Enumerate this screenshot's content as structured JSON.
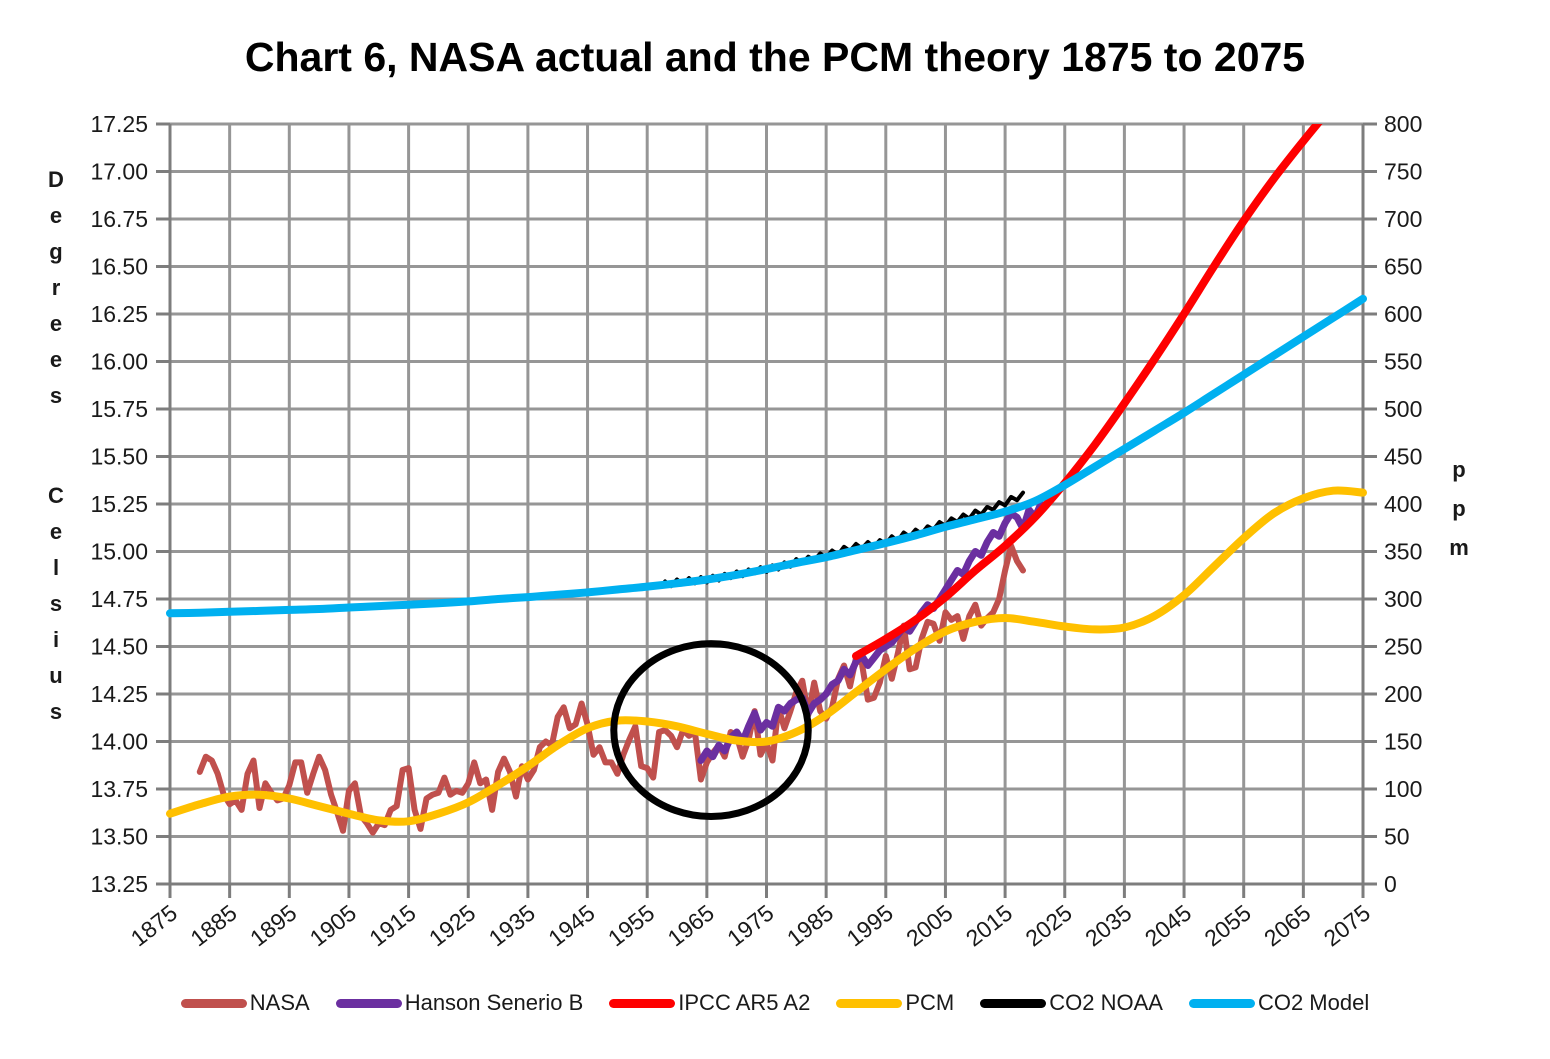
{
  "title": "Chart 6, NASA actual and the PCM theory 1875 to 2075",
  "colors": {
    "grid": "#969696",
    "axis": "#7d7d7d",
    "text": "#1a1a1a",
    "background": "#ffffff"
  },
  "chart_data": {
    "type": "line",
    "title": "Chart 6, NASA actual and the PCM theory 1875 to 2075",
    "grid": true,
    "legend_position": "bottom",
    "x_axis": {
      "min": 1875,
      "max": 2075,
      "ticks": [
        "1875",
        "1885",
        "1895",
        "1905",
        "1915",
        "1925",
        "1935",
        "1945",
        "1955",
        "1965",
        "1975",
        "1985",
        "1995",
        "2005",
        "2015",
        "2025",
        "2035",
        "2045",
        "2055",
        "2065",
        "2075"
      ]
    },
    "left_axis": {
      "label": "Degrees Celsius",
      "word1": "Degrees",
      "word2": "Celsius",
      "min": 13.25,
      "max": 17.25,
      "ticks": [
        "17.25",
        "17.00",
        "16.75",
        "16.50",
        "16.25",
        "16.00",
        "15.75",
        "15.50",
        "15.25",
        "15.00",
        "14.75",
        "14.50",
        "14.25",
        "14.00",
        "13.75",
        "13.50",
        "13.25"
      ]
    },
    "right_axis": {
      "label": "ppm",
      "word": "ppm",
      "min": 0,
      "max": 800,
      "ticks": [
        "800",
        "750",
        "700",
        "650",
        "600",
        "550",
        "500",
        "450",
        "400",
        "350",
        "300",
        "250",
        "200",
        "150",
        "100",
        "50",
        "0"
      ]
    },
    "series": [
      {
        "name": "NASA",
        "color": "#C0504D",
        "width": 6,
        "axis": "left",
        "smooth": false,
        "x_start": 1880,
        "x_step": 1,
        "values": [
          13.84,
          13.92,
          13.9,
          13.83,
          13.72,
          13.67,
          13.69,
          13.64,
          13.83,
          13.9,
          13.65,
          13.78,
          13.73,
          13.69,
          13.7,
          13.77,
          13.89,
          13.89,
          13.73,
          13.83,
          13.92,
          13.85,
          13.72,
          13.63,
          13.53,
          13.74,
          13.78,
          13.61,
          13.57,
          13.52,
          13.57,
          13.56,
          13.64,
          13.66,
          13.85,
          13.86,
          13.64,
          13.54,
          13.7,
          13.72,
          13.73,
          13.81,
          13.72,
          13.74,
          13.73,
          13.78,
          13.89,
          13.78,
          13.8,
          13.64,
          13.84,
          13.91,
          13.84,
          13.71,
          13.87,
          13.8,
          13.85,
          13.97,
          14.0,
          13.98,
          14.13,
          14.18,
          14.07,
          14.09,
          14.2,
          14.09,
          13.93,
          13.97,
          13.89,
          13.89,
          13.83,
          13.93,
          14.01,
          14.08,
          13.87,
          13.86,
          13.81,
          14.05,
          14.06,
          14.03,
          13.97,
          14.06,
          14.03,
          14.05,
          13.8,
          13.89,
          13.94,
          13.98,
          13.92,
          14.05,
          14.03,
          13.92,
          14.01,
          14.16,
          13.93,
          13.99,
          13.9,
          14.18,
          14.07,
          14.16,
          14.26,
          14.32,
          14.14,
          14.31,
          14.16,
          14.12,
          14.18,
          14.33,
          14.4,
          14.29,
          14.44,
          14.41,
          14.22,
          14.23,
          14.31,
          14.45,
          14.33,
          14.46,
          14.61,
          14.38,
          14.39,
          14.54,
          14.63,
          14.62,
          14.53,
          14.68,
          14.64,
          14.66,
          14.54,
          14.66,
          14.72,
          14.61,
          14.65,
          14.68,
          14.75,
          14.9,
          15.03,
          14.95,
          14.9
        ]
      },
      {
        "name": "Hanson Senerio B",
        "color": "#6B2FA0",
        "width": 7,
        "axis": "left",
        "smooth": false,
        "x_start": 1964,
        "x_step": 1,
        "values": [
          13.9,
          13.95,
          13.92,
          13.98,
          13.95,
          14.02,
          14.05,
          14.0,
          14.08,
          14.15,
          14.06,
          14.1,
          14.08,
          14.18,
          14.16,
          14.2,
          14.22,
          14.23,
          14.15,
          14.2,
          14.22,
          14.25,
          14.3,
          14.32,
          14.38,
          14.35,
          14.42,
          14.45,
          14.4,
          14.44,
          14.48,
          14.5,
          14.52,
          14.56,
          14.6,
          14.58,
          14.63,
          14.68,
          14.72,
          14.7,
          14.75,
          14.8,
          14.85,
          14.9,
          14.88,
          14.95,
          15.0,
          14.98,
          15.05,
          15.1,
          15.08,
          15.15,
          15.2,
          15.18,
          15.12,
          15.22,
          15.18,
          15.25
        ]
      },
      {
        "name": "IPCC AR5 A2",
        "color": "#FE0000",
        "width": 8,
        "axis": "left",
        "smooth": true,
        "x": [
          1990,
          1995,
          2000,
          2005,
          2010,
          2015,
          2020,
          2025,
          2030,
          2035,
          2040,
          2045,
          2050,
          2055,
          2060,
          2065,
          2070,
          2075
        ],
        "values": [
          14.45,
          14.54,
          14.64,
          14.76,
          14.9,
          15.03,
          15.18,
          15.36,
          15.56,
          15.78,
          16.01,
          16.25,
          16.5,
          16.74,
          16.96,
          17.16,
          17.35,
          17.53
        ]
      },
      {
        "name": "PCM",
        "color": "#FFC000",
        "width": 8,
        "axis": "left",
        "smooth": true,
        "x": [
          1875,
          1880,
          1885,
          1890,
          1895,
          1900,
          1905,
          1910,
          1915,
          1920,
          1925,
          1930,
          1935,
          1940,
          1945,
          1950,
          1955,
          1960,
          1965,
          1970,
          1975,
          1980,
          1985,
          1990,
          1995,
          2000,
          2005,
          2010,
          2015,
          2020,
          2025,
          2030,
          2035,
          2040,
          2045,
          2050,
          2055,
          2060,
          2065,
          2070,
          2075
        ],
        "values": [
          13.62,
          13.67,
          13.71,
          13.72,
          13.7,
          13.66,
          13.62,
          13.585,
          13.58,
          13.62,
          13.68,
          13.77,
          13.87,
          13.98,
          14.07,
          14.11,
          14.105,
          14.08,
          14.04,
          14.005,
          14.0,
          14.05,
          14.14,
          14.26,
          14.38,
          14.49,
          14.58,
          14.63,
          14.65,
          14.63,
          14.605,
          14.59,
          14.6,
          14.66,
          14.77,
          14.92,
          15.07,
          15.2,
          15.28,
          15.32,
          15.31
        ]
      },
      {
        "name": "CO2 NOAA",
        "color": "#000000",
        "width": 4,
        "axis": "right",
        "smooth": false,
        "x_start": 1958,
        "x_step": 1,
        "values": [
          318.5,
          313.5,
          320.5,
          315.5,
          322,
          316.5,
          323,
          317.5,
          324.5,
          319.5,
          326.5,
          322,
          329,
          324,
          331,
          327,
          333.5,
          328.5,
          335.5,
          331,
          338.5,
          334,
          342,
          337.5,
          344.5,
          340.5,
          348,
          343.5,
          351,
          346.5,
          355,
          350.5,
          358,
          353,
          360,
          354.5,
          362,
          358,
          366,
          361,
          370,
          365.5,
          373,
          368.5,
          376.5,
          373,
          381,
          377,
          385,
          381,
          389,
          384.5,
          393,
          389,
          397,
          394,
          402,
          398.5,
          407.5,
          404,
          412
        ]
      },
      {
        "name": "CO2 Model",
        "color": "#00B0F0",
        "width": 8,
        "axis": "right",
        "smooth": true,
        "x": [
          1875,
          1880,
          1885,
          1890,
          1895,
          1900,
          1905,
          1910,
          1915,
          1920,
          1925,
          1930,
          1935,
          1940,
          1945,
          1950,
          1955,
          1960,
          1965,
          1970,
          1975,
          1980,
          1985,
          1990,
          1995,
          2000,
          2005,
          2010,
          2015,
          2020,
          2025,
          2030,
          2035,
          2040,
          2045,
          2050,
          2055,
          2060,
          2065,
          2070,
          2075
        ],
        "values": [
          285,
          285.5,
          286.5,
          287.5,
          288.5,
          289.5,
          291,
          292.5,
          294,
          295.5,
          297.5,
          300,
          302,
          304.5,
          307,
          310,
          313,
          316.5,
          320.5,
          325.5,
          331.5,
          338,
          344,
          351.5,
          359,
          367,
          376,
          384,
          392,
          403,
          420,
          439,
          458,
          477,
          496,
          516,
          536,
          556,
          576,
          596,
          616
        ]
      }
    ],
    "annotation_circle": {
      "center_year": 1965.7,
      "center_temp": 14.06,
      "radius_years": 16.3,
      "radius_degrees": 0.455,
      "color": "#000000",
      "width": 7
    },
    "legend": [
      {
        "label": "NASA",
        "color": "#C0504D"
      },
      {
        "label": "Hanson Senerio B",
        "color": "#6B2FA0"
      },
      {
        "label": "IPCC AR5 A2",
        "color": "#FE0000"
      },
      {
        "label": "PCM",
        "color": "#FFC000"
      },
      {
        "label": "CO2 NOAA",
        "color": "#000000"
      },
      {
        "label": "CO2 Model",
        "color": "#00B0F0"
      }
    ]
  }
}
